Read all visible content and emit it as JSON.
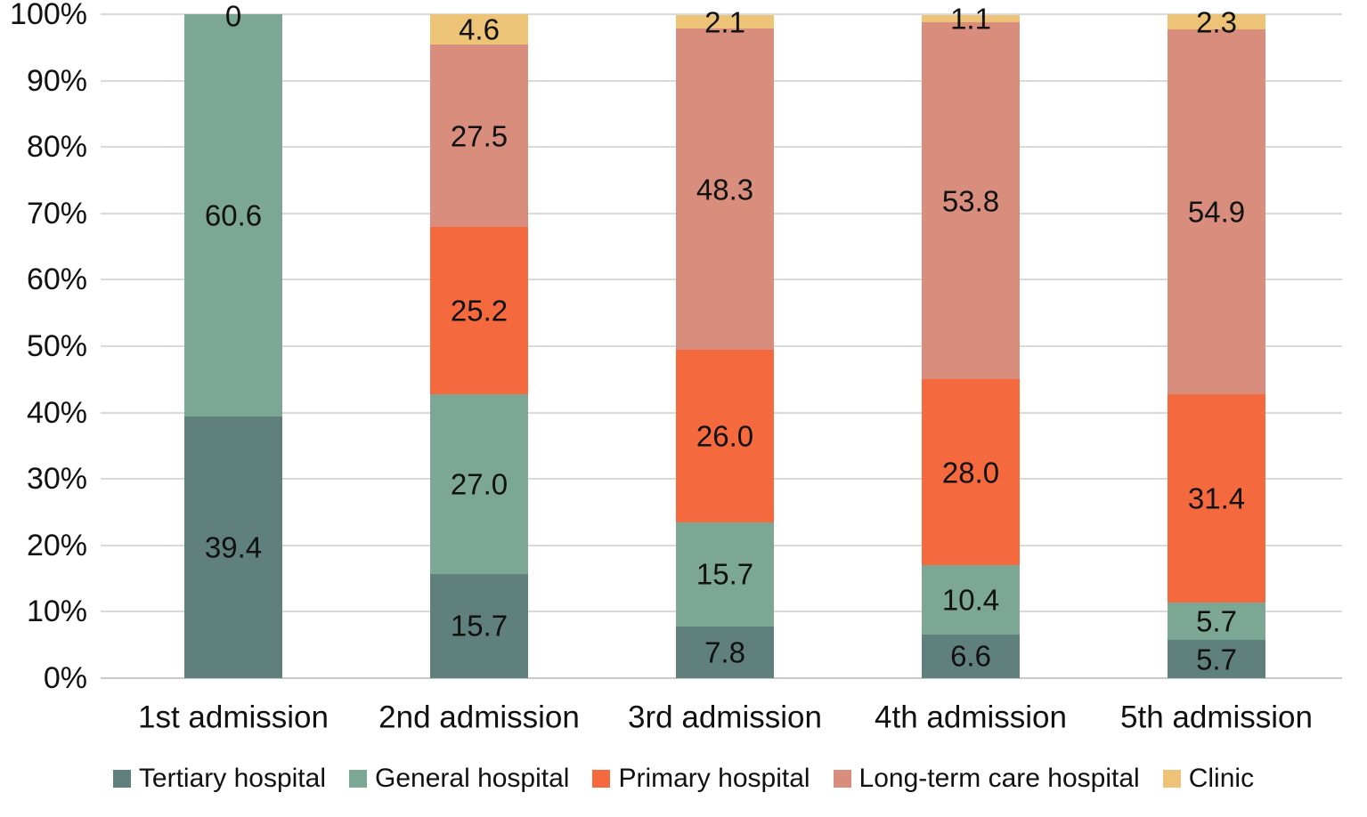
{
  "chart_data": {
    "type": "bar",
    "subtype": "stacked-100-percent-column",
    "title": "",
    "xlabel": "",
    "ylabel": "",
    "categories": [
      "1st admission",
      "2nd admission",
      "3rd admission",
      "4th admission",
      "5th admission"
    ],
    "series": [
      {
        "name": "Tertiary hospital",
        "color": "#5F807D",
        "values": [
          39.4,
          15.7,
          7.8,
          6.6,
          5.7
        ],
        "labels": [
          "39.4",
          "15.7",
          "7.8",
          "6.6",
          "5.7"
        ]
      },
      {
        "name": "General hospital",
        "color": "#7CA794",
        "values": [
          60.6,
          27.0,
          15.7,
          10.4,
          5.7
        ],
        "labels": [
          "60.6",
          "27.0",
          "15.7",
          "10.4",
          "5.7"
        ]
      },
      {
        "name": "Primary hospital",
        "color": "#F4693E",
        "values": [
          0,
          25.2,
          26.0,
          28.0,
          31.4
        ],
        "labels": [
          null,
          "25.2",
          "26.0",
          "28.0",
          "31.4"
        ]
      },
      {
        "name": "Long-term care hospital",
        "color": "#D98E7D",
        "values": [
          0,
          27.5,
          48.3,
          53.8,
          54.9
        ],
        "labels": [
          null,
          "27.5",
          "48.3",
          "53.8",
          "54.9"
        ]
      },
      {
        "name": "Clinic",
        "color": "#EDC477",
        "values": [
          0,
          4.6,
          2.1,
          1.1,
          2.3
        ],
        "labels": [
          null,
          "4.6",
          "2.1",
          "1.1",
          "2.3"
        ]
      }
    ],
    "zero_label": {
      "category_index": 0,
      "text": "0"
    },
    "y_axis": {
      "min": 0,
      "max": 100,
      "tick_labels": [
        "0%",
        "10%",
        "20%",
        "30%",
        "40%",
        "50%",
        "60%",
        "70%",
        "80%",
        "90%",
        "100%"
      ],
      "grid": true
    },
    "legend_position": "bottom",
    "grid_color": "#d9d9d9",
    "text_color": "#111111",
    "background_color": "#ffffff"
  }
}
